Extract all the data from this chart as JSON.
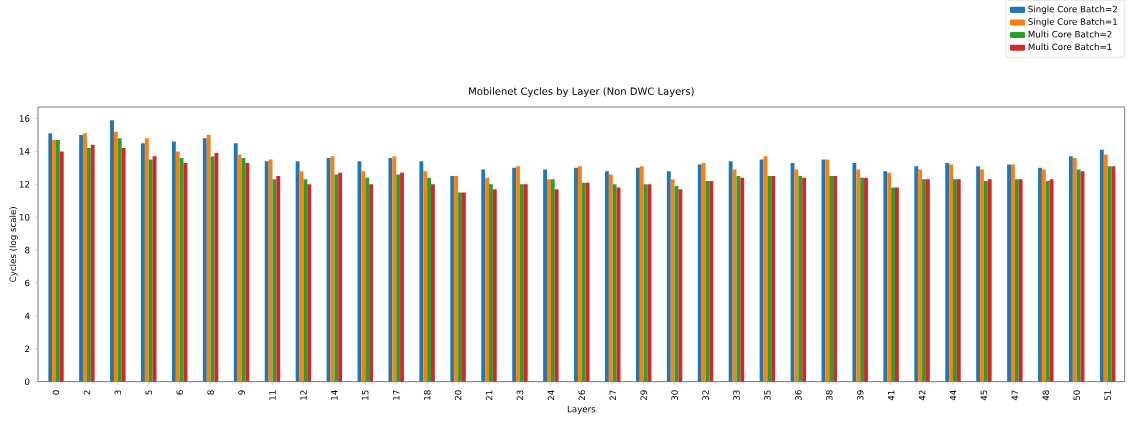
{
  "chart_data": {
    "type": "bar",
    "title": "Mobilenet Cycles by Layer (Non DWC Layers)",
    "xlabel": "Layers",
    "ylabel": "Cycles (log scale)",
    "categories": [
      "0",
      "2",
      "3",
      "5",
      "6",
      "8",
      "9",
      "11",
      "12",
      "14",
      "15",
      "17",
      "18",
      "20",
      "21",
      "23",
      "24",
      "26",
      "27",
      "29",
      "30",
      "32",
      "33",
      "35",
      "36",
      "38",
      "39",
      "41",
      "42",
      "44",
      "45",
      "47",
      "48",
      "50",
      "51"
    ],
    "series": [
      {
        "name": "Single Core Batch=2",
        "color": "#1f77b4",
        "values": [
          15.1,
          15.0,
          15.9,
          14.5,
          14.6,
          14.8,
          14.5,
          13.4,
          13.4,
          13.6,
          13.4,
          13.6,
          13.4,
          12.5,
          12.9,
          13.0,
          12.9,
          13.0,
          12.8,
          13.0,
          12.8,
          13.2,
          13.4,
          13.5,
          13.3,
          13.5,
          13.3,
          12.8,
          13.1,
          13.3,
          13.1,
          13.2,
          13.0,
          13.7,
          14.1
        ]
      },
      {
        "name": "Single Core Batch=1",
        "color": "#ff7f0e",
        "values": [
          14.7,
          15.1,
          15.2,
          14.8,
          14.0,
          15.0,
          13.8,
          13.5,
          12.8,
          13.7,
          12.8,
          13.7,
          12.8,
          12.5,
          12.4,
          13.1,
          12.3,
          13.1,
          12.6,
          13.1,
          12.3,
          13.3,
          12.9,
          13.7,
          12.9,
          13.5,
          12.9,
          12.7,
          12.9,
          13.2,
          12.9,
          13.2,
          12.9,
          13.6,
          13.8
        ]
      },
      {
        "name": "Multi Core Batch=2",
        "color": "#2ca02c",
        "values": [
          14.7,
          14.2,
          14.8,
          13.5,
          13.6,
          13.7,
          13.6,
          12.3,
          12.3,
          12.6,
          12.4,
          12.6,
          12.4,
          11.5,
          12.0,
          12.0,
          12.3,
          12.1,
          12.0,
          12.0,
          11.9,
          12.2,
          12.5,
          12.5,
          12.5,
          12.5,
          12.4,
          11.8,
          12.3,
          12.3,
          12.2,
          12.3,
          12.2,
          12.9,
          13.1
        ]
      },
      {
        "name": "Multi Core Batch=1",
        "color": "#d62728",
        "values": [
          14.0,
          14.4,
          14.2,
          13.7,
          13.3,
          13.9,
          13.3,
          12.5,
          12.0,
          12.7,
          12.0,
          12.7,
          12.0,
          11.5,
          11.7,
          12.0,
          11.7,
          12.1,
          11.8,
          12.0,
          11.7,
          12.2,
          12.4,
          12.5,
          12.4,
          12.5,
          12.4,
          11.8,
          12.3,
          12.3,
          12.3,
          12.3,
          12.3,
          12.8,
          13.1
        ]
      }
    ],
    "ylim": [
      0,
      16.7
    ],
    "yticks": [
      0,
      2,
      4,
      6,
      8,
      10,
      12,
      14,
      16
    ],
    "legend": "top right",
    "grid": false
  }
}
